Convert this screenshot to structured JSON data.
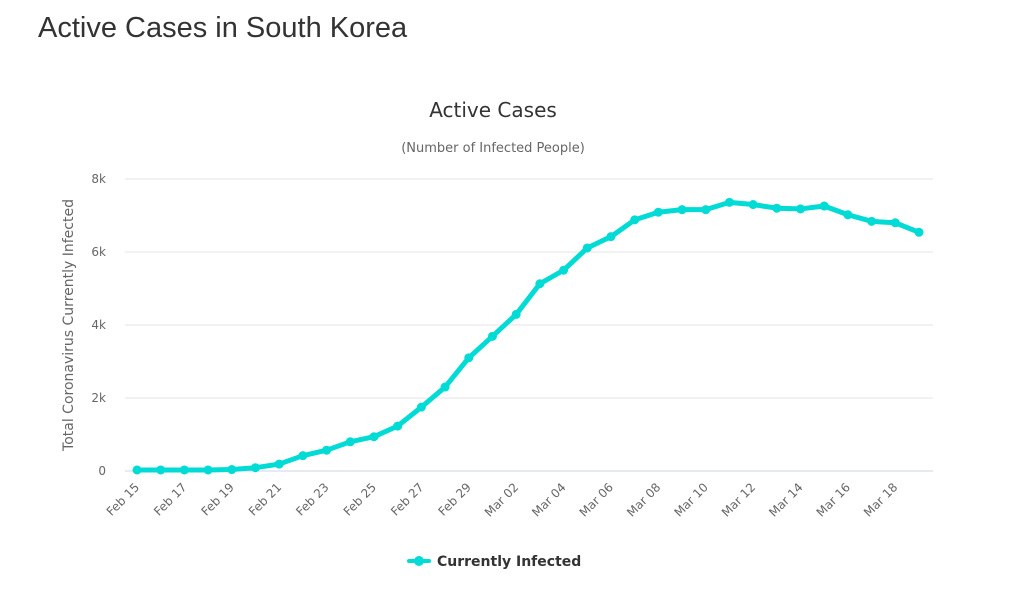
{
  "page": {
    "title": "Active Cases in South Korea"
  },
  "colors": {
    "series": "#00dbd5",
    "grid": "#e6e6e6",
    "axis": "#ccd6eb"
  },
  "chart_data": {
    "type": "line",
    "title": "Active Cases",
    "subtitle": "(Number of Infected People)",
    "xlabel": "",
    "ylabel": "Total Coronavirus Currently Infected",
    "ylim": [
      0,
      8000
    ],
    "yticks": [
      0,
      2000,
      4000,
      6000,
      8000
    ],
    "ytick_labels": [
      "0",
      "2k",
      "4k",
      "6k",
      "8k"
    ],
    "grid": true,
    "legend": "bottom-center",
    "x": [
      "Feb 15",
      "Feb 16",
      "Feb 17",
      "Feb 18",
      "Feb 19",
      "Feb 20",
      "Feb 21",
      "Feb 22",
      "Feb 23",
      "Feb 24",
      "Feb 25",
      "Feb 26",
      "Feb 27",
      "Feb 28",
      "Feb 29",
      "Mar 01",
      "Mar 02",
      "Mar 03",
      "Mar 04",
      "Mar 05",
      "Mar 06",
      "Mar 07",
      "Mar 08",
      "Mar 09",
      "Mar 10",
      "Mar 11",
      "Mar 12",
      "Mar 13",
      "Mar 14",
      "Mar 15",
      "Mar 16",
      "Mar 17",
      "Mar 18",
      "Mar 19"
    ],
    "xtick_labels": [
      "Feb 15",
      "Feb 17",
      "Feb 19",
      "Feb 21",
      "Feb 23",
      "Feb 25",
      "Feb 27",
      "Feb 29",
      "Mar 02",
      "Mar 04",
      "Mar 06",
      "Mar 08",
      "Mar 10",
      "Mar 12",
      "Mar 14",
      "Mar 16",
      "Mar 18"
    ],
    "series": [
      {
        "name": "Currently Infected",
        "values": [
          28,
          28,
          28,
          28,
          40,
          90,
          190,
          420,
          570,
          800,
          940,
          1230,
          1750,
          2300,
          3100,
          3690,
          4290,
          5130,
          5500,
          6110,
          6420,
          6880,
          7090,
          7160,
          7160,
          7360,
          7300,
          7200,
          7180,
          7260,
          7020,
          6840,
          6800,
          6540
        ]
      }
    ]
  }
}
